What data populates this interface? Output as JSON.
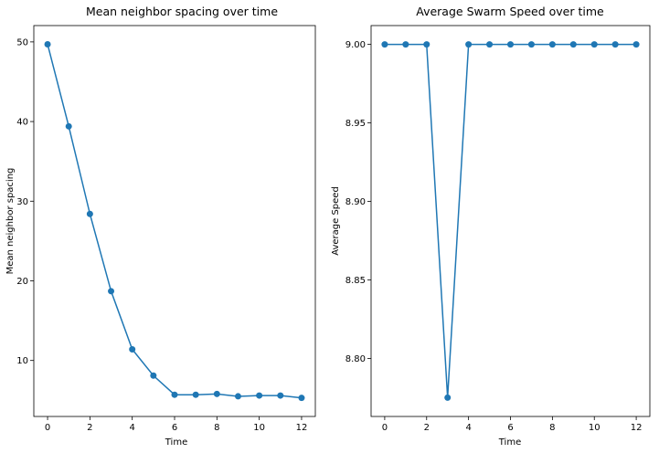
{
  "figure": {
    "line_color": "#1f77b4",
    "background": "#ffffff"
  },
  "chart_data": [
    {
      "type": "line",
      "title": "Mean neighbor spacing over time",
      "xlabel": "Time",
      "ylabel": "Mean neighbor spacing",
      "x": [
        0,
        1,
        2,
        3,
        4,
        5,
        6,
        7,
        8,
        9,
        10,
        11,
        12
      ],
      "y": [
        49.7,
        39.4,
        28.4,
        18.7,
        11.4,
        8.1,
        5.7,
        5.7,
        5.8,
        5.5,
        5.6,
        5.6,
        5.3
      ],
      "xlim": [
        -0.65,
        12.65
      ],
      "ylim": [
        2.97,
        52.05
      ],
      "xticks": [
        0,
        2,
        4,
        6,
        8,
        10,
        12
      ],
      "xtick_labels": [
        "0",
        "2",
        "4",
        "6",
        "8",
        "10",
        "12"
      ],
      "yticks": [
        10,
        20,
        30,
        40,
        50
      ],
      "ytick_labels": [
        "10",
        "20",
        "30",
        "40",
        "50"
      ],
      "grid": false,
      "markers": true
    },
    {
      "type": "line",
      "title": "Average Swarm Speed over time",
      "xlabel": "Time",
      "ylabel": "Average Speed",
      "x": [
        0,
        1,
        2,
        3,
        4,
        5,
        6,
        7,
        8,
        9,
        10,
        11,
        12
      ],
      "y": [
        9.0,
        9.0,
        9.0,
        8.775,
        9.0,
        9.0,
        9.0,
        9.0,
        9.0,
        9.0,
        9.0,
        9.0,
        9.0
      ],
      "xlim": [
        -0.65,
        12.65
      ],
      "ylim": [
        8.763,
        9.012
      ],
      "xticks": [
        0,
        2,
        4,
        6,
        8,
        10,
        12
      ],
      "xtick_labels": [
        "0",
        "2",
        "4",
        "6",
        "8",
        "10",
        "12"
      ],
      "yticks": [
        8.8,
        8.85,
        8.9,
        8.95,
        9.0
      ],
      "ytick_labels": [
        "8.80",
        "8.85",
        "8.90",
        "8.95",
        "9.00"
      ],
      "grid": false,
      "markers": true
    }
  ]
}
